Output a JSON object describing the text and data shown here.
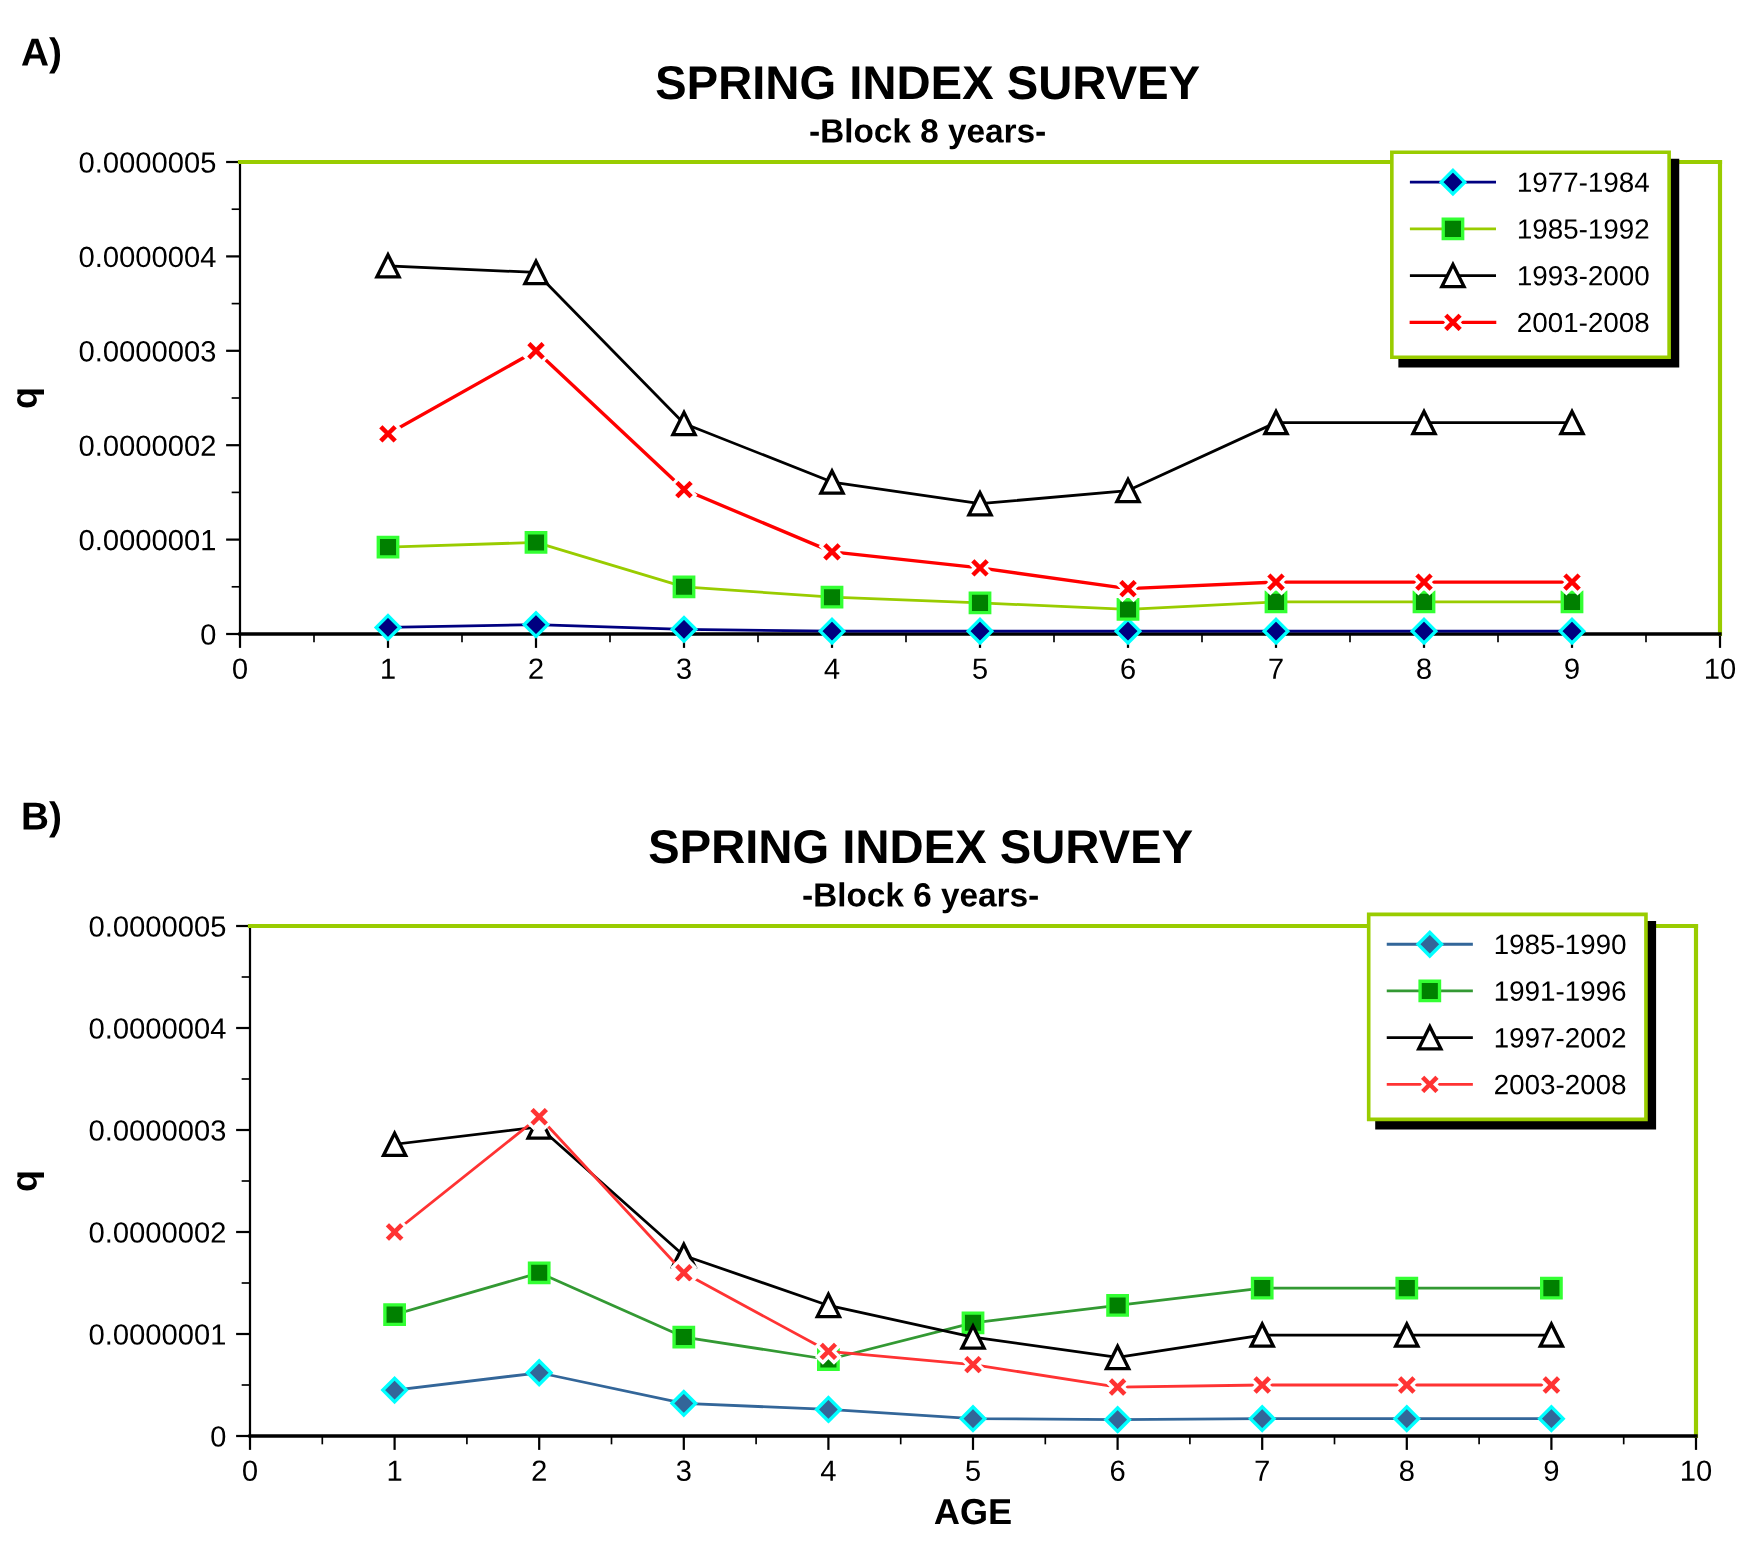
{
  "chart_data": [
    {
      "type": "line",
      "title": "SPRING INDEX SURVEY",
      "subtitle": "-Block 8 years-",
      "ylabel": "q",
      "annotations": [
        "A)"
      ],
      "x": [
        1,
        2,
        3,
        4,
        5,
        6,
        7,
        8,
        9
      ],
      "series": [
        {
          "name": "1977-1984",
          "color": "#000080",
          "marker": "diamond",
          "values": [
            7e-09,
            1e-08,
            5e-09,
            3e-09,
            3e-09,
            3e-09,
            3e-09,
            3e-09,
            3e-09
          ]
        },
        {
          "name": "1985-1992",
          "color": "#99cc00",
          "marker": "square",
          "values": [
            9.2e-08,
            9.7e-08,
            5e-08,
            3.9e-08,
            3.3e-08,
            2.6e-08,
            3.4e-08,
            3.4e-08,
            3.4e-08
          ]
        },
        {
          "name": "1993-2000",
          "color": "#000000",
          "marker": "triangle",
          "values": [
            3.9e-07,
            3.83e-07,
            2.23e-07,
            1.61e-07,
            1.38e-07,
            1.52e-07,
            2.24e-07,
            2.24e-07,
            2.24e-07
          ]
        },
        {
          "name": "2001-2008",
          "color": "#ff0000",
          "marker": "cross",
          "values": [
            2.12e-07,
            3e-07,
            1.53e-07,
            8.7e-08,
            7e-08,
            4.8e-08,
            5.5e-08,
            5.5e-08,
            5.5e-08
          ]
        }
      ],
      "xlim": [
        0,
        10
      ],
      "xticks": [
        0,
        1,
        2,
        3,
        4,
        5,
        6,
        7,
        8,
        9,
        10
      ],
      "ylim": [
        0,
        5e-07
      ],
      "yticks": [
        {
          "value": 0,
          "label": "0"
        },
        {
          "value": 1e-07,
          "label": "0.0000001"
        },
        {
          "value": 2e-07,
          "label": "0.0000002"
        },
        {
          "value": 3e-07,
          "label": "0.0000003"
        },
        {
          "value": 4e-07,
          "label": "0.0000004"
        },
        {
          "value": 5e-07,
          "label": "0.0000005"
        }
      ],
      "grid": false,
      "legend": "top right"
    },
    {
      "type": "line",
      "title": "SPRING INDEX SURVEY",
      "subtitle": "-Block 6 years-",
      "xlabel": "AGE",
      "ylabel": "q",
      "annotations": [
        "B)"
      ],
      "x": [
        1,
        2,
        3,
        4,
        5,
        6,
        7,
        8,
        9
      ],
      "series": [
        {
          "name": "1985-1990",
          "color": "#336699",
          "marker": "diamond",
          "values": [
            4.5e-08,
            6.2e-08,
            3.2e-08,
            2.6e-08,
            1.7e-08,
            1.6e-08,
            1.7e-08,
            1.7e-08,
            1.7e-08
          ]
        },
        {
          "name": "1991-1996",
          "color": "#339933",
          "marker": "square",
          "values": [
            1.19e-07,
            1.6e-07,
            9.7e-08,
            7.5e-08,
            1.11e-07,
            1.28e-07,
            1.45e-07,
            1.45e-07,
            1.45e-07
          ]
        },
        {
          "name": "1997-2002",
          "color": "#000000",
          "marker": "triangle",
          "values": [
            2.86e-07,
            3.03e-07,
            1.77e-07,
            1.28e-07,
            9.7e-08,
            7.7e-08,
            9.9e-08,
            9.9e-08,
            9.9e-08
          ]
        },
        {
          "name": "2003-2008",
          "color": "#ff3333",
          "marker": "cross",
          "values": [
            2e-07,
            3.13e-07,
            1.6e-07,
            8.3e-08,
            7e-08,
            4.8e-08,
            5e-08,
            5e-08,
            5e-08
          ]
        }
      ],
      "xlim": [
        0,
        10
      ],
      "xticks": [
        0,
        1,
        2,
        3,
        4,
        5,
        6,
        7,
        8,
        9,
        10
      ],
      "ylim": [
        0,
        5e-07
      ],
      "yticks": [
        {
          "value": 0,
          "label": "0"
        },
        {
          "value": 1e-07,
          "label": "0.0000001"
        },
        {
          "value": 2e-07,
          "label": "0.0000002"
        },
        {
          "value": 3e-07,
          "label": "0.0000003"
        },
        {
          "value": 4e-07,
          "label": "0.0000004"
        },
        {
          "value": 5e-07,
          "label": "0.0000005"
        }
      ],
      "grid": false,
      "legend": "top right"
    }
  ]
}
